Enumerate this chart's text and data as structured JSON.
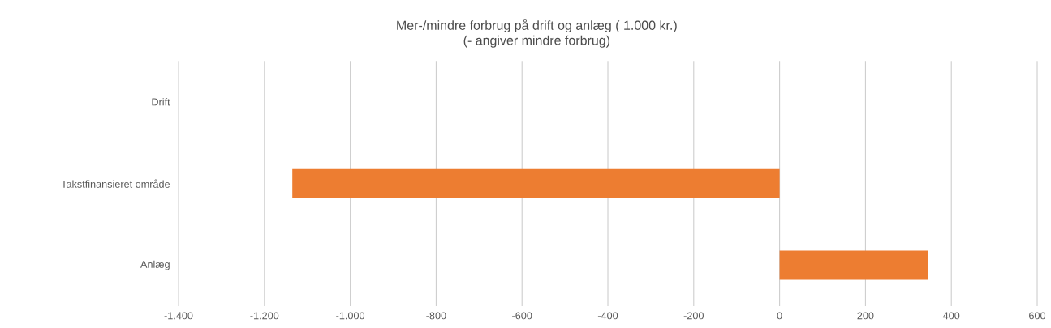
{
  "chart_data": {
    "type": "bar",
    "orientation": "horizontal",
    "title": "Mer-/mindre forbrug på drift og anlæg ( 1.000 kr.)",
    "subtitle": "(- angiver mindre forbrug)",
    "categories": [
      "Drift",
      "Takstfinansieret område",
      "Anlæg"
    ],
    "values": [
      0,
      -1135,
      345
    ],
    "color": "#ed7d31",
    "xlim": [
      -1400,
      600
    ],
    "xticks": [
      {
        "value": -1400,
        "label": "-1.400"
      },
      {
        "value": -1200,
        "label": "-1.200"
      },
      {
        "value": -1000,
        "label": "-1.000"
      },
      {
        "value": -800,
        "label": "-800"
      },
      {
        "value": -600,
        "label": "-600"
      },
      {
        "value": -400,
        "label": "-400"
      },
      {
        "value": -200,
        "label": "-200"
      },
      0,
      200,
      400,
      600
    ],
    "grid": "x"
  }
}
